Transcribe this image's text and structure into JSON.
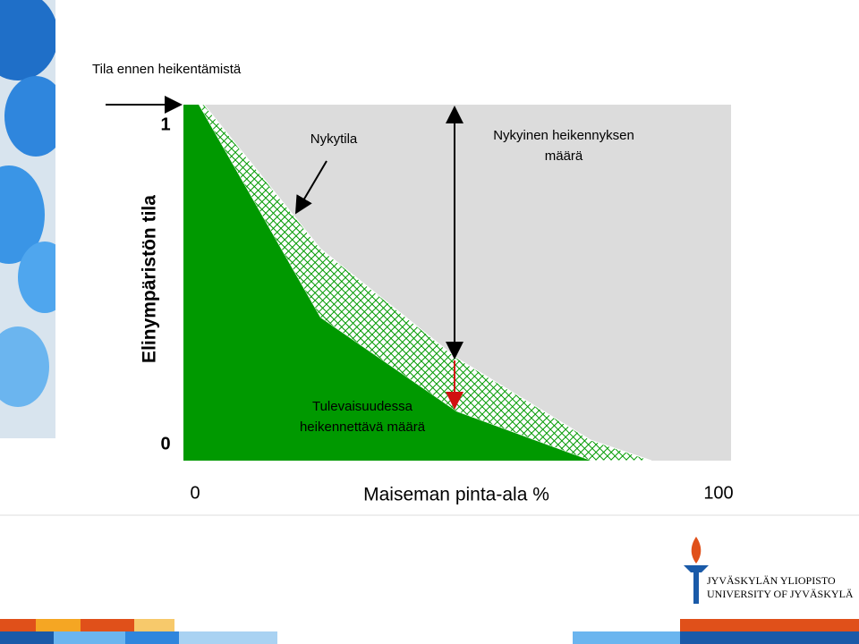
{
  "title": "Tila ennen heikentämistä",
  "y_axis": {
    "label": "Elinympäristön tila",
    "top": "1",
    "bottom": "0"
  },
  "x_axis": {
    "label": "Maiseman pinta-ala %",
    "left": "0",
    "right": "100"
  },
  "annotations": {
    "current": "Nykytila",
    "current_loss": [
      "Nykyinen heikennyksen",
      "määrä"
    ],
    "future_loss": [
      "Tulevaisuudessa",
      "heikennettävä määrä"
    ]
  },
  "logo": [
    "JYVÄSKYLÄN YLIOPISTO",
    "UNIVERSITY OF JYVÄSKYLÄ"
  ]
}
